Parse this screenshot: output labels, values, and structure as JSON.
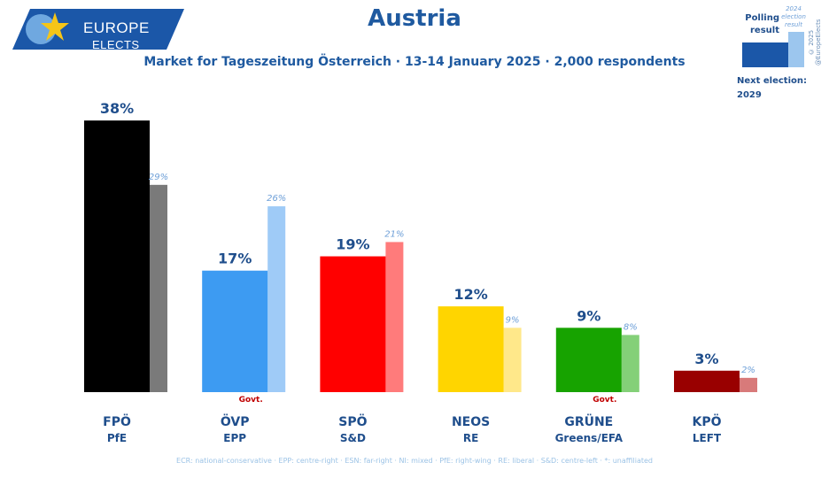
{
  "logo": {
    "line1": "EUROPE",
    "line2": "ELECTS",
    "bg_color": "#1b57a8",
    "accent_color": "#f5c518"
  },
  "title": "Austria",
  "subtitle": "Market for Tageszeitung Österreich · 13-14 January 2025 · 2,000 respondents",
  "legend": {
    "polling": "Polling result",
    "election": "2024 election result",
    "copyright": "© 2025 @EuropeElects",
    "next_election": "Next election: 2029"
  },
  "chart_data": {
    "type": "bar",
    "ylim": [
      0,
      40
    ],
    "categories": [
      "FPÖ",
      "ÖVP",
      "SPÖ",
      "NEOS",
      "GRÜNE",
      "KPÖ"
    ],
    "groups": [
      "PfE",
      "EPP",
      "S&D",
      "RE",
      "Greens/EFA",
      "LEFT"
    ],
    "series": [
      {
        "name": "Polling result",
        "values": [
          38,
          17,
          19,
          12,
          9,
          3
        ],
        "labels": [
          "38%",
          "17%",
          "19%",
          "12%",
          "9%",
          "3%"
        ]
      },
      {
        "name": "2024 election result",
        "values": [
          29,
          26,
          21,
          9,
          8,
          2
        ],
        "labels": [
          "29%",
          "26%",
          "21%",
          "9%",
          "8%",
          "2%"
        ]
      }
    ],
    "colors": [
      "#000000",
      "#3d9bf2",
      "#ff0000",
      "#ffd500",
      "#17a300",
      "#990000"
    ],
    "prev_colors": [
      "#7a7a7a",
      "#9fcbf7",
      "#ff7b7b",
      "#ffe88a",
      "#84d078",
      "#d87a7a"
    ],
    "govt_label": "Govt.",
    "govt": [
      false,
      true,
      false,
      false,
      true,
      false
    ]
  },
  "footnote": "ECR: national-conservative · EPP: centre-right · ESN: far-right · NI: mixed · PfE: right-wing · RE: liberal · S&D: centre-left · *: unaffiliated"
}
